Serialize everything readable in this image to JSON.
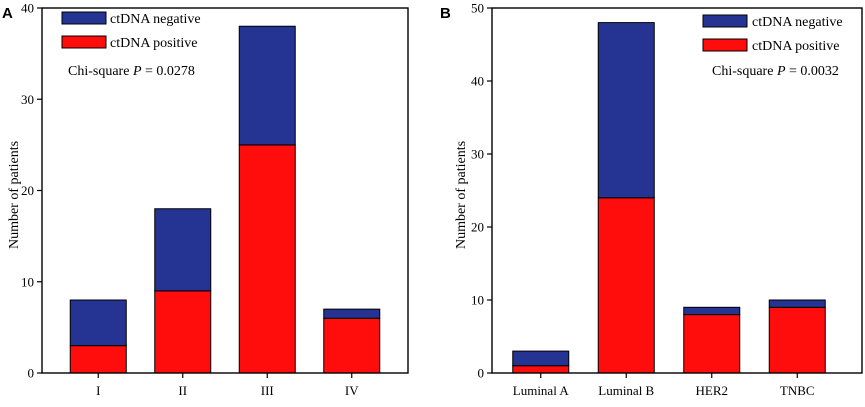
{
  "colors": {
    "negative": "#253393",
    "positive": "#ff0d0d"
  },
  "chart_data": [
    {
      "type": "bar",
      "stacked": true,
      "panel": "A",
      "categories": [
        "I",
        "II",
        "III",
        "IV"
      ],
      "series": [
        {
          "name": "ctDNA positive",
          "values": [
            3,
            9,
            25,
            6
          ]
        },
        {
          "name": "ctDNA negative",
          "values": [
            5,
            9,
            13,
            1
          ]
        }
      ],
      "ylabel": "Number of patients",
      "xlabel": "",
      "ylim": [
        0,
        40
      ],
      "yticks": [
        0,
        10,
        20,
        30,
        40
      ],
      "legend": [
        "ctDNA negative",
        "ctDNA positive"
      ],
      "legend_position": "top-left",
      "annotation": {
        "prefix": "Chi-square ",
        "italic": "P",
        "suffix": " = 0.0278"
      }
    },
    {
      "type": "bar",
      "stacked": true,
      "panel": "B",
      "categories": [
        "Luminal A",
        "Luminal B",
        "HER2",
        "TNBC"
      ],
      "series": [
        {
          "name": "ctDNA positive",
          "values": [
            1,
            24,
            8,
            9
          ]
        },
        {
          "name": "ctDNA negative",
          "values": [
            2,
            24,
            1,
            1
          ]
        }
      ],
      "ylabel": "Number of patients",
      "xlabel": "",
      "ylim": [
        0,
        50
      ],
      "yticks": [
        0,
        10,
        20,
        30,
        40,
        50
      ],
      "legend": [
        "ctDNA negative",
        "ctDNA positive"
      ],
      "legend_position": "top-right",
      "annotation": {
        "prefix": "Chi-square ",
        "italic": "P",
        "suffix": " = 0.0032"
      }
    }
  ]
}
